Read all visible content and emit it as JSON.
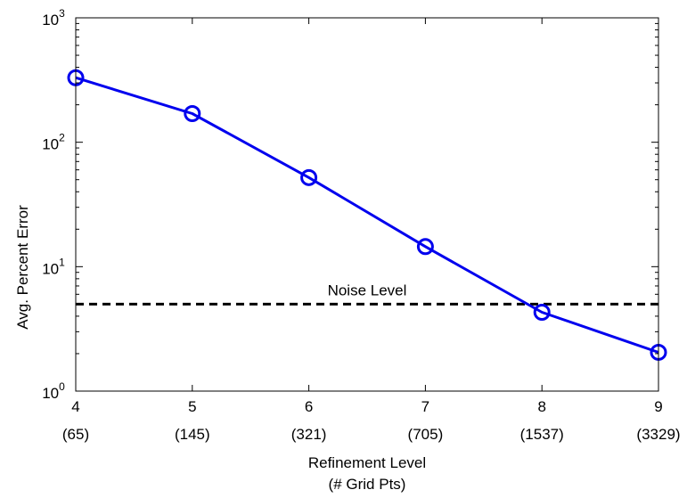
{
  "chart_data": {
    "type": "line",
    "x": [
      4,
      5,
      6,
      7,
      8,
      9
    ],
    "x_labels": [
      {
        "level": "4",
        "pts": "(65)"
      },
      {
        "level": "5",
        "pts": "(145)"
      },
      {
        "level": "6",
        "pts": "(321)"
      },
      {
        "level": "7",
        "pts": "(705)"
      },
      {
        "level": "8",
        "pts": "(1537)"
      },
      {
        "level": "9",
        "pts": "(3329)"
      }
    ],
    "series": [
      {
        "values": [
          330,
          170,
          52,
          14.5,
          4.3,
          2.05
        ],
        "color": "#0000ee",
        "marker": "circle"
      }
    ],
    "xlabel": "Refinement Level",
    "xlabel2": "(# Grid Pts)",
    "ylabel": "Avg. Percent Error",
    "xlim": [
      4,
      9
    ],
    "ylim": [
      1,
      1000
    ],
    "yscale": "log",
    "y_ticks": [
      {
        "value": 1,
        "base": "10",
        "exp": "0"
      },
      {
        "value": 10,
        "base": "10",
        "exp": "1"
      },
      {
        "value": 100,
        "base": "10",
        "exp": "2"
      },
      {
        "value": 1000,
        "base": "10",
        "exp": "3"
      }
    ],
    "reference_line": {
      "value": 5,
      "label": "Noise Level",
      "style": "dashed",
      "color": "#000000"
    },
    "grid": false
  }
}
